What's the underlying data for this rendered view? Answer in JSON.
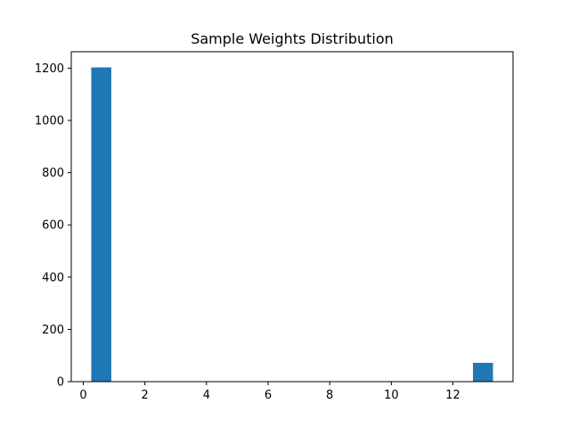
{
  "chart_data": {
    "type": "bar",
    "title": "Sample Weights Distribution",
    "xlabel": "",
    "ylabel": "",
    "bins": [
      {
        "x0": 0.26,
        "x1": 0.91,
        "count": 1203
      },
      {
        "x0": 12.65,
        "x1": 13.3,
        "count": 72
      }
    ],
    "xlim": [
      -0.39,
      13.95
    ],
    "ylim": [
      0,
      1263
    ],
    "xticks": [
      0,
      2,
      4,
      6,
      8,
      10,
      12
    ],
    "yticks": [
      0,
      200,
      400,
      600,
      800,
      1000,
      1200
    ],
    "grid": false,
    "bar_color": "#1f77b4"
  }
}
